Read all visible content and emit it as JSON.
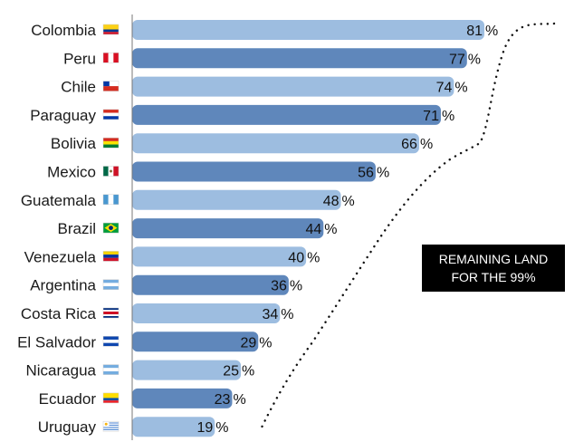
{
  "annotation": {
    "line1": "REMAINING LAND",
    "line2": "FOR THE 99%"
  },
  "colors": {
    "light_bar": "#9dbde0",
    "dark_bar": "#5f87bb",
    "axis": "#777777",
    "dotted_line": "#111111"
  },
  "chart_data": {
    "type": "bar",
    "orientation": "horizontal",
    "categories": [
      "Colombia",
      "Peru",
      "Chile",
      "Paraguay",
      "Bolivia",
      "Mexico",
      "Guatemala",
      "Brazil",
      "Venezuela",
      "Argentina",
      "Costa Rica",
      "El Salvador",
      "Nicaragua",
      "Ecuador",
      "Uruguay"
    ],
    "values": [
      81,
      77,
      74,
      71,
      66,
      56,
      48,
      44,
      40,
      36,
      34,
      29,
      25,
      23,
      19
    ],
    "flags": [
      "colombia",
      "peru",
      "chile",
      "paraguay",
      "bolivia",
      "mexico",
      "guatemala",
      "brazil",
      "venezuela",
      "argentina",
      "costa-rica",
      "el-salvador",
      "nicaragua",
      "ecuador",
      "uruguay"
    ],
    "unit": "%",
    "bar_colors": [
      "light",
      "dark",
      "light",
      "dark",
      "light",
      "dark",
      "light",
      "dark",
      "light",
      "dark",
      "light",
      "dark",
      "light",
      "dark",
      "light"
    ],
    "xlim": [
      0,
      100
    ],
    "grid": false,
    "legend": "none"
  }
}
